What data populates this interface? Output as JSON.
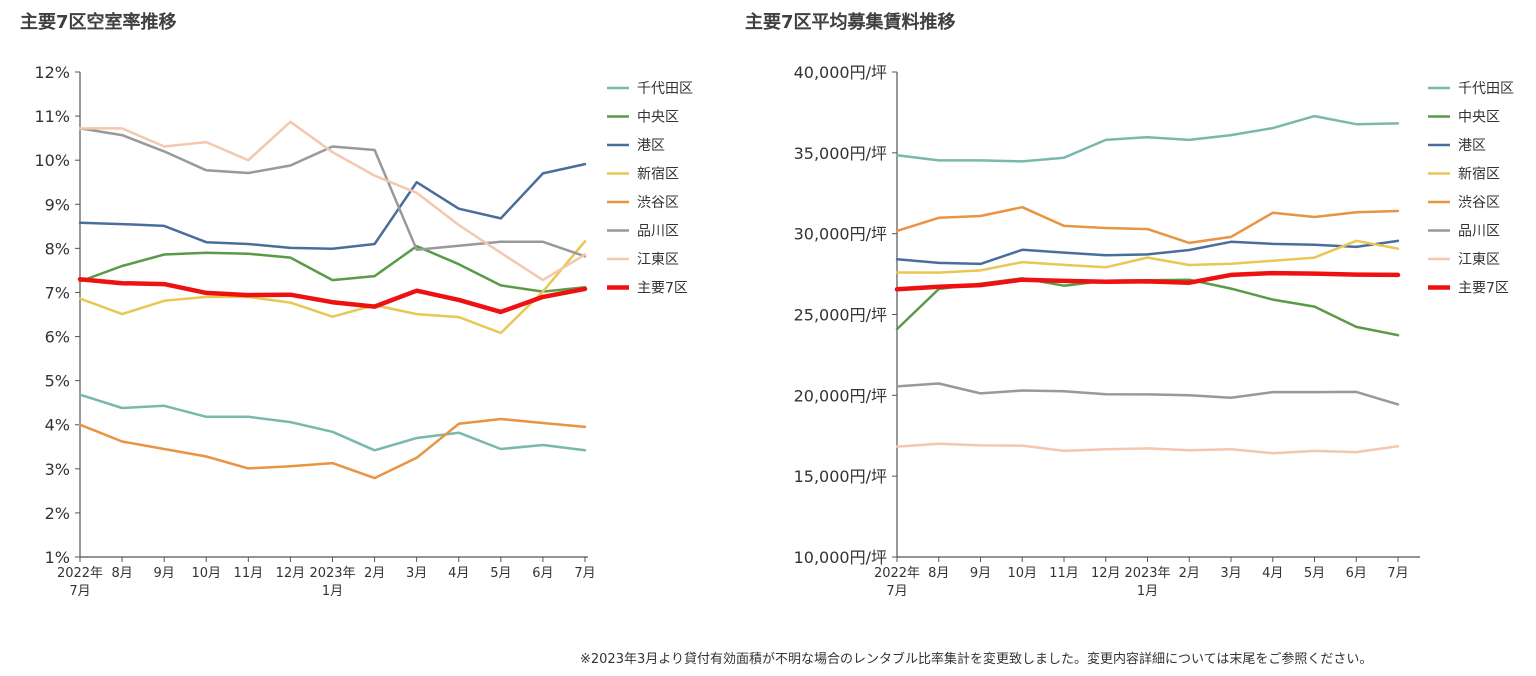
{
  "footnote": "※2023年3月より貸付有効面積が不明な場合のレンタブル比率集計を変更致しました。変更内容詳細については末尾をご参照ください。",
  "chart_data": [
    {
      "type": "line",
      "title": "主要7区空室率推移",
      "ylim": [
        1,
        12
      ],
      "yticks": [
        "1%",
        "2%",
        "3%",
        "4%",
        "5%",
        "6%",
        "7%",
        "8%",
        "9%",
        "10%",
        "11%",
        "12%"
      ],
      "categories": [
        [
          "2022年",
          "7月"
        ],
        [
          "8月"
        ],
        [
          "9月"
        ],
        [
          "10月"
        ],
        [
          "11月"
        ],
        [
          "12月"
        ],
        [
          "2023年",
          "1月"
        ],
        [
          "2月"
        ],
        [
          "3月"
        ],
        [
          "4月"
        ],
        [
          "5月"
        ],
        [
          "6月"
        ],
        [
          "7月"
        ]
      ],
      "series": [
        {
          "name": "千代田区",
          "color": "#7ab8ae",
          "width": 2.5,
          "values": [
            4.68,
            4.38,
            4.43,
            4.18,
            4.18,
            4.06,
            3.84,
            3.42,
            3.7,
            3.82,
            3.45,
            3.54,
            3.42
          ]
        },
        {
          "name": "中央区",
          "color": "#5a9a48",
          "width": 2.5,
          "values": [
            7.25,
            7.6,
            7.86,
            7.9,
            7.88,
            7.79,
            7.28,
            7.37,
            8.05,
            7.64,
            7.16,
            7.02,
            7.12
          ]
        },
        {
          "name": "港区",
          "color": "#4a6e9c",
          "width": 2.5,
          "values": [
            8.58,
            8.55,
            8.51,
            8.14,
            8.1,
            8.01,
            7.99,
            8.1,
            9.5,
            8.9,
            8.68,
            9.7,
            9.91
          ]
        },
        {
          "name": "新宿区",
          "color": "#e8c752",
          "width": 2.5,
          "values": [
            6.86,
            6.51,
            6.81,
            6.9,
            6.9,
            6.77,
            6.45,
            6.71,
            6.51,
            6.44,
            6.08,
            7.02,
            8.16
          ]
        },
        {
          "name": "渋谷区",
          "color": "#e89440",
          "width": 2.5,
          "values": [
            4.0,
            3.62,
            3.45,
            3.28,
            3.01,
            3.06,
            3.13,
            2.79,
            3.25,
            4.02,
            4.13,
            4.04,
            3.95
          ]
        },
        {
          "name": "品川区",
          "color": "#999999",
          "width": 2.5,
          "values": [
            10.72,
            10.57,
            10.2,
            9.77,
            9.71,
            9.88,
            10.31,
            10.23,
            7.97,
            8.06,
            8.15,
            8.15,
            7.82
          ]
        },
        {
          "name": "江東区",
          "color": "#f3c8ae",
          "width": 2.5,
          "values": [
            10.72,
            10.72,
            10.31,
            10.41,
            10.0,
            10.87,
            10.18,
            9.65,
            9.26,
            8.53,
            7.9,
            7.28,
            7.86
          ]
        },
        {
          "name": "主要7区",
          "color": "#ee1111",
          "width": 4.5,
          "values": [
            7.3,
            7.21,
            7.19,
            6.99,
            6.94,
            6.95,
            6.78,
            6.68,
            7.04,
            6.83,
            6.56,
            6.9,
            7.08
          ]
        }
      ]
    },
    {
      "type": "line",
      "title": "主要7区平均募集賃料推移",
      "ylim": [
        10000,
        40000
      ],
      "yticks": [
        "10,000円/坪",
        "15,000円/坪",
        "20,000円/坪",
        "25,000円/坪",
        "30,000円/坪",
        "35,000円/坪",
        "40,000円/坪"
      ],
      "categories": [
        [
          "2022年",
          "7月"
        ],
        [
          "8月"
        ],
        [
          "9月"
        ],
        [
          "10月"
        ],
        [
          "11月"
        ],
        [
          "12月"
        ],
        [
          "2023年",
          "1月"
        ],
        [
          "2月"
        ],
        [
          "3月"
        ],
        [
          "4月"
        ],
        [
          "5月"
        ],
        [
          "6月"
        ],
        [
          "7月"
        ]
      ],
      "series": [
        {
          "name": "千代田区",
          "color": "#7ab8ae",
          "width": 2.5,
          "values": [
            34850,
            34530,
            34530,
            34470,
            34700,
            35800,
            35970,
            35800,
            36100,
            36530,
            37270,
            36770,
            36820
          ]
        },
        {
          "name": "中央区",
          "color": "#5a9a48",
          "width": 2.5,
          "values": [
            24100,
            26580,
            26900,
            27240,
            26780,
            27090,
            27120,
            27150,
            26600,
            25920,
            25490,
            24230,
            23720
          ]
        },
        {
          "name": "港区",
          "color": "#4a6e9c",
          "width": 2.5,
          "values": [
            28420,
            28190,
            28130,
            29000,
            28830,
            28660,
            28720,
            28990,
            29500,
            29370,
            29320,
            29180,
            29560
          ]
        },
        {
          "name": "新宿区",
          "color": "#e8c752",
          "width": 2.5,
          "values": [
            27600,
            27590,
            27730,
            28240,
            28070,
            27920,
            28520,
            28060,
            28140,
            28320,
            28520,
            29560,
            29070
          ]
        },
        {
          "name": "渋谷区",
          "color": "#e89440",
          "width": 2.5,
          "values": [
            30170,
            30980,
            31090,
            31640,
            30480,
            30350,
            30280,
            29430,
            29800,
            31290,
            31030,
            31330,
            31400
          ]
        },
        {
          "name": "品川区",
          "color": "#999999",
          "width": 2.5,
          "values": [
            20550,
            20730,
            20120,
            20300,
            20250,
            20070,
            20060,
            20000,
            19850,
            20200,
            20200,
            20210,
            19440
          ]
        },
        {
          "name": "江東区",
          "color": "#f3c8ae",
          "width": 2.5,
          "values": [
            16830,
            17000,
            16900,
            16890,
            16560,
            16670,
            16720,
            16600,
            16670,
            16420,
            16560,
            16490,
            16850
          ]
        },
        {
          "name": "主要7区",
          "color": "#ee1111",
          "width": 4.5,
          "values": [
            26560,
            26720,
            26820,
            27150,
            27080,
            27020,
            27050,
            26970,
            27450,
            27560,
            27530,
            27470,
            27450
          ]
        }
      ]
    }
  ]
}
